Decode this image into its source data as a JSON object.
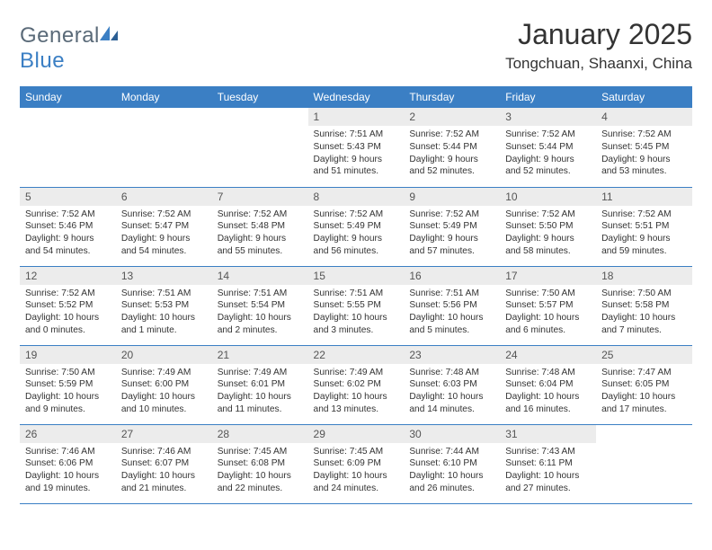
{
  "brand": {
    "part1": "General",
    "part2": "Blue"
  },
  "title": "January 2025",
  "location": "Tongchuan, Shaanxi, China",
  "colors": {
    "header_bg": "#3b7fc4",
    "header_text": "#ffffff",
    "daynum_bg": "#ececec",
    "row_border": "#3b7fc4",
    "body_text": "#333333",
    "logo_gray": "#5a6a78",
    "logo_blue": "#3b7fc4",
    "background": "#ffffff"
  },
  "typography": {
    "title_fontsize": 32,
    "location_fontsize": 17,
    "weekday_fontsize": 12,
    "daynum_fontsize": 12,
    "body_fontsize": 10.2
  },
  "weekdays": [
    "Sunday",
    "Monday",
    "Tuesday",
    "Wednesday",
    "Thursday",
    "Friday",
    "Saturday"
  ],
  "weeks": [
    [
      null,
      null,
      null,
      {
        "n": "1",
        "sr": "7:51 AM",
        "ss": "5:43 PM",
        "dl": "9 hours and 51 minutes."
      },
      {
        "n": "2",
        "sr": "7:52 AM",
        "ss": "5:44 PM",
        "dl": "9 hours and 52 minutes."
      },
      {
        "n": "3",
        "sr": "7:52 AM",
        "ss": "5:44 PM",
        "dl": "9 hours and 52 minutes."
      },
      {
        "n": "4",
        "sr": "7:52 AM",
        "ss": "5:45 PM",
        "dl": "9 hours and 53 minutes."
      }
    ],
    [
      {
        "n": "5",
        "sr": "7:52 AM",
        "ss": "5:46 PM",
        "dl": "9 hours and 54 minutes."
      },
      {
        "n": "6",
        "sr": "7:52 AM",
        "ss": "5:47 PM",
        "dl": "9 hours and 54 minutes."
      },
      {
        "n": "7",
        "sr": "7:52 AM",
        "ss": "5:48 PM",
        "dl": "9 hours and 55 minutes."
      },
      {
        "n": "8",
        "sr": "7:52 AM",
        "ss": "5:49 PM",
        "dl": "9 hours and 56 minutes."
      },
      {
        "n": "9",
        "sr": "7:52 AM",
        "ss": "5:49 PM",
        "dl": "9 hours and 57 minutes."
      },
      {
        "n": "10",
        "sr": "7:52 AM",
        "ss": "5:50 PM",
        "dl": "9 hours and 58 minutes."
      },
      {
        "n": "11",
        "sr": "7:52 AM",
        "ss": "5:51 PM",
        "dl": "9 hours and 59 minutes."
      }
    ],
    [
      {
        "n": "12",
        "sr": "7:52 AM",
        "ss": "5:52 PM",
        "dl": "10 hours and 0 minutes."
      },
      {
        "n": "13",
        "sr": "7:51 AM",
        "ss": "5:53 PM",
        "dl": "10 hours and 1 minute."
      },
      {
        "n": "14",
        "sr": "7:51 AM",
        "ss": "5:54 PM",
        "dl": "10 hours and 2 minutes."
      },
      {
        "n": "15",
        "sr": "7:51 AM",
        "ss": "5:55 PM",
        "dl": "10 hours and 3 minutes."
      },
      {
        "n": "16",
        "sr": "7:51 AM",
        "ss": "5:56 PM",
        "dl": "10 hours and 5 minutes."
      },
      {
        "n": "17",
        "sr": "7:50 AM",
        "ss": "5:57 PM",
        "dl": "10 hours and 6 minutes."
      },
      {
        "n": "18",
        "sr": "7:50 AM",
        "ss": "5:58 PM",
        "dl": "10 hours and 7 minutes."
      }
    ],
    [
      {
        "n": "19",
        "sr": "7:50 AM",
        "ss": "5:59 PM",
        "dl": "10 hours and 9 minutes."
      },
      {
        "n": "20",
        "sr": "7:49 AM",
        "ss": "6:00 PM",
        "dl": "10 hours and 10 minutes."
      },
      {
        "n": "21",
        "sr": "7:49 AM",
        "ss": "6:01 PM",
        "dl": "10 hours and 11 minutes."
      },
      {
        "n": "22",
        "sr": "7:49 AM",
        "ss": "6:02 PM",
        "dl": "10 hours and 13 minutes."
      },
      {
        "n": "23",
        "sr": "7:48 AM",
        "ss": "6:03 PM",
        "dl": "10 hours and 14 minutes."
      },
      {
        "n": "24",
        "sr": "7:48 AM",
        "ss": "6:04 PM",
        "dl": "10 hours and 16 minutes."
      },
      {
        "n": "25",
        "sr": "7:47 AM",
        "ss": "6:05 PM",
        "dl": "10 hours and 17 minutes."
      }
    ],
    [
      {
        "n": "26",
        "sr": "7:46 AM",
        "ss": "6:06 PM",
        "dl": "10 hours and 19 minutes."
      },
      {
        "n": "27",
        "sr": "7:46 AM",
        "ss": "6:07 PM",
        "dl": "10 hours and 21 minutes."
      },
      {
        "n": "28",
        "sr": "7:45 AM",
        "ss": "6:08 PM",
        "dl": "10 hours and 22 minutes."
      },
      {
        "n": "29",
        "sr": "7:45 AM",
        "ss": "6:09 PM",
        "dl": "10 hours and 24 minutes."
      },
      {
        "n": "30",
        "sr": "7:44 AM",
        "ss": "6:10 PM",
        "dl": "10 hours and 26 minutes."
      },
      {
        "n": "31",
        "sr": "7:43 AM",
        "ss": "6:11 PM",
        "dl": "10 hours and 27 minutes."
      },
      null
    ]
  ],
  "labels": {
    "sunrise": "Sunrise: ",
    "sunset": "Sunset: ",
    "daylight": "Daylight: "
  }
}
